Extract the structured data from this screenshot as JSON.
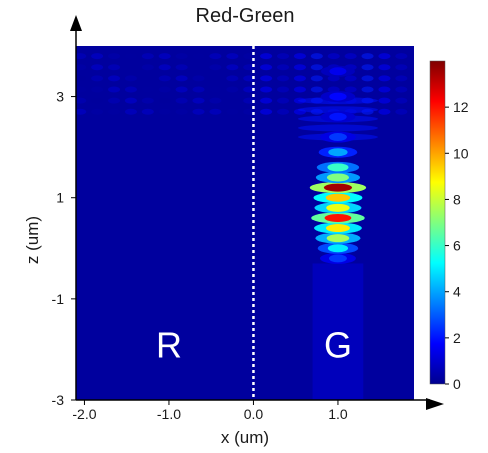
{
  "chart_data": {
    "type": "heatmap",
    "title": "Red-Green",
    "xlabel": "x (um)",
    "ylabel": "z (um)",
    "xlim": [
      -2.1,
      1.9
    ],
    "ylim": [
      -3.0,
      4.0
    ],
    "x_ticks": [
      {
        "value": -2.0,
        "label": "-2.0"
      },
      {
        "value": -1.0,
        "label": "-1.0"
      },
      {
        "value": 0.0,
        "label": "0.0"
      },
      {
        "value": 1.0,
        "label": "1.0"
      }
    ],
    "y_ticks": [
      {
        "value": -3,
        "label": "-3"
      },
      {
        "value": -1,
        "label": "-1"
      },
      {
        "value": 1,
        "label": "1"
      },
      {
        "value": 3,
        "label": "3"
      }
    ],
    "colorbar": {
      "colormap": "jet",
      "range": [
        0,
        14
      ],
      "ticks": [
        {
          "value": 0,
          "label": "0"
        },
        {
          "value": 2,
          "label": "2"
        },
        {
          "value": 4,
          "label": "4"
        },
        {
          "value": 6,
          "label": "6"
        },
        {
          "value": 8,
          "label": "8"
        },
        {
          "value": 10,
          "label": "10"
        },
        {
          "value": 12,
          "label": "12"
        }
      ]
    },
    "divider_x": 0.0,
    "region_labels": [
      {
        "text": "R",
        "x": -1.0,
        "z": -1.9,
        "color": "#ffffff"
      },
      {
        "text": "G",
        "x": 1.0,
        "z": -1.9,
        "color": "#ffffff"
      }
    ],
    "peak_value": 13.5,
    "peak_location": {
      "x": 1.0,
      "z": 1.2
    },
    "intensity_profile_center_x1": [
      {
        "z": -0.2,
        "value": 2.5
      },
      {
        "z": 0.0,
        "value": 5.0
      },
      {
        "z": 0.2,
        "value": 7.5
      },
      {
        "z": 0.4,
        "value": 9.0
      },
      {
        "z": 0.6,
        "value": 12.0
      },
      {
        "z": 0.8,
        "value": 8.5
      },
      {
        "z": 1.0,
        "value": 9.5
      },
      {
        "z": 1.2,
        "value": 13.5
      },
      {
        "z": 1.4,
        "value": 7.0
      },
      {
        "z": 1.6,
        "value": 6.0
      },
      {
        "z": 1.9,
        "value": 4.0
      },
      {
        "z": 2.2,
        "value": 2.5
      },
      {
        "z": 2.6,
        "value": 2.0
      },
      {
        "z": 3.0,
        "value": 1.8
      },
      {
        "z": 3.5,
        "value": 1.5
      }
    ]
  }
}
